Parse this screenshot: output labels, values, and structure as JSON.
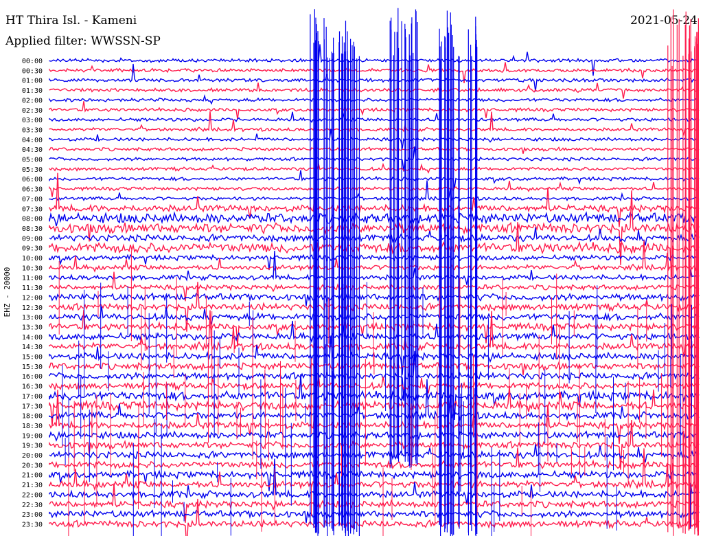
{
  "header": {
    "station": "HT Thira Isl. - Kameni",
    "date": "2021-05-24",
    "filter": "Applied filter: WWSSN-SP"
  },
  "chart_data": {
    "type": "line",
    "title": "HT Thira Isl. - Kameni",
    "ylabel": "EHZ - 20000",
    "row_labels": [
      "00:00",
      "00:30",
      "01:00",
      "01:30",
      "02:00",
      "02:30",
      "03:00",
      "03:30",
      "04:00",
      "04:30",
      "05:00",
      "05:30",
      "06:00",
      "06:30",
      "07:00",
      "07:30",
      "08:00",
      "08:30",
      "09:00",
      "09:30",
      "10:00",
      "10:30",
      "11:00",
      "11:30",
      "12:00",
      "12:30",
      "13:00",
      "13:30",
      "14:00",
      "14:30",
      "15:00",
      "15:30",
      "16:00",
      "16:30",
      "17:00",
      "17:30",
      "18:00",
      "18:30",
      "19:00",
      "19:30",
      "20:00",
      "20:30",
      "21:00",
      "21:30",
      "22:00",
      "22:30",
      "23:00",
      "23:30"
    ],
    "row_colors": [
      "#0000ee",
      "#ff1a4b"
    ],
    "series": [
      {
        "color": "#0000ee"
      },
      {
        "color": "#ff1a4b"
      }
    ],
    "noise_level": [
      1,
      1,
      1,
      1,
      1,
      1,
      1,
      1,
      1,
      1,
      1,
      1,
      1,
      1,
      1,
      2,
      3,
      3,
      2,
      3,
      1.5,
      1.5,
      1.5,
      1.5,
      2,
      2,
      2,
      2,
      2,
      2,
      2,
      2,
      2,
      2,
      2.5,
      2.5,
      2,
      2,
      2,
      2,
      2,
      2,
      2,
      2,
      2,
      2,
      2,
      2
    ],
    "bursts": [
      {
        "x_frac": 0.4,
        "width_frac": 0.08,
        "row_start": 0,
        "row_end": 47,
        "color_row": "even"
      },
      {
        "x_frac": 0.52,
        "width_frac": 0.05,
        "row_start": 0,
        "row_end": 40,
        "color_row": "even"
      },
      {
        "x_frac": 0.6,
        "width_frac": 0.06,
        "row_start": 0,
        "row_end": 47,
        "color_row": "even"
      },
      {
        "x_frac": 0.95,
        "width_frac": 0.05,
        "row_start": 0,
        "row_end": 47,
        "color_row": "odd"
      }
    ]
  }
}
